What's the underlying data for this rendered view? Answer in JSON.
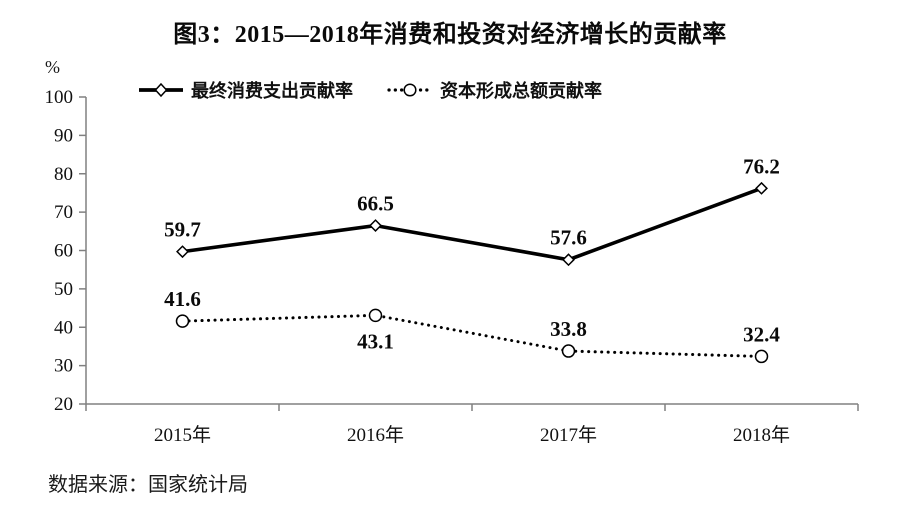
{
  "chart_data": {
    "type": "line",
    "title": "图3：2015—2018年消费和投资对经济增长的贡献率",
    "ylabel": "%",
    "xlabel": "",
    "categories": [
      "2015年",
      "2016年",
      "2017年",
      "2018年"
    ],
    "series": [
      {
        "name": "最终消费支出贡献率",
        "marker": "diamond",
        "line_style": "solid",
        "color": "#000000",
        "values": [
          59.7,
          66.5,
          57.6,
          76.2
        ],
        "label_positions": [
          "above",
          "above",
          "above",
          "above"
        ]
      },
      {
        "name": "资本形成总额贡献率",
        "marker": "circle",
        "line_style": "dotted",
        "color": "#000000",
        "values": [
          41.6,
          43.1,
          33.8,
          32.4
        ],
        "label_positions": [
          "above",
          "below",
          "above",
          "above"
        ]
      }
    ],
    "ylim": [
      20,
      100
    ],
    "yticks": [
      20,
      30,
      40,
      50,
      60,
      70,
      80,
      90,
      100
    ],
    "grid": false,
    "legend_position": "top",
    "axis_color": "#808080"
  },
  "source_label": "数据来源：国家统计局"
}
